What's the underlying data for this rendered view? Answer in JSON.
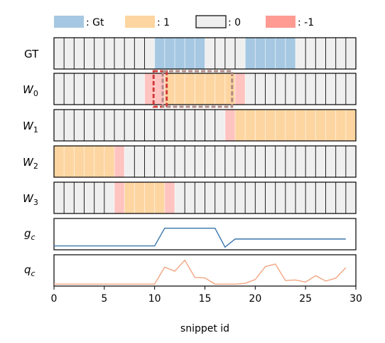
{
  "legend": [
    {
      "label": ": Gt",
      "color": "#a6c8e2"
    },
    {
      "label": ": 1",
      "color": "#fdd5a0"
    },
    {
      "label": ": 0",
      "color": "#efefef"
    },
    {
      "label": ": -1",
      "color": "#ff9b92"
    }
  ],
  "rows": [
    {
      "id": "gt",
      "label": "GT",
      "cells": [
        0,
        0,
        0,
        0,
        0,
        0,
        0,
        0,
        0,
        0,
        2,
        2,
        2,
        2,
        2,
        0,
        0,
        0,
        0,
        2,
        2,
        2,
        2,
        2,
        0,
        0,
        0,
        0,
        0,
        0
      ]
    },
    {
      "id": "w0",
      "label": "W",
      "sub": "0",
      "cells": [
        0,
        0,
        0,
        0,
        0,
        0,
        0,
        0,
        0,
        -1,
        -1,
        1,
        1,
        1,
        1,
        1,
        1,
        1,
        -1,
        0,
        0,
        0,
        0,
        0,
        0,
        0,
        0,
        0,
        0,
        0
      ]
    },
    {
      "id": "w1",
      "label": "W",
      "sub": "1",
      "cells": [
        0,
        0,
        0,
        0,
        0,
        0,
        0,
        0,
        0,
        0,
        0,
        0,
        0,
        0,
        0,
        0,
        0,
        -1,
        1,
        1,
        1,
        1,
        1,
        1,
        1,
        1,
        1,
        1,
        1,
        1
      ]
    },
    {
      "id": "w2",
      "label": "W",
      "sub": "2",
      "cells": [
        1,
        1,
        1,
        1,
        1,
        1,
        -1,
        0,
        0,
        0,
        0,
        0,
        0,
        0,
        0,
        0,
        0,
        0,
        0,
        0,
        0,
        0,
        0,
        0,
        0,
        0,
        0,
        0,
        0,
        0
      ]
    },
    {
      "id": "w3",
      "label": "W",
      "sub": "3",
      "cells": [
        0,
        0,
        0,
        0,
        0,
        0,
        -1,
        1,
        1,
        1,
        1,
        -1,
        0,
        0,
        0,
        0,
        0,
        0,
        0,
        0,
        0,
        0,
        0,
        0,
        0,
        0,
        0,
        0,
        0,
        0
      ]
    }
  ],
  "highlight_boxes": [
    {
      "row": "w0",
      "from": 9.9,
      "to": 11.2,
      "color": "#d23a3a"
    },
    {
      "row": "w0",
      "from": 10.8,
      "to": 17.7,
      "color": "#b08a84"
    }
  ],
  "chart_data": [
    {
      "type": "line",
      "ylabel": "g",
      "ylabel_sub": "c",
      "color": "#3a75ad",
      "x": [
        0,
        10,
        11,
        16,
        17,
        18,
        29
      ],
      "y": [
        0.0,
        0.0,
        0.72,
        0.72,
        -0.05,
        0.28,
        0.28
      ]
    },
    {
      "type": "line",
      "ylabel": "q",
      "ylabel_sub": "c",
      "color": "#f2a582",
      "x": [
        0,
        1,
        2,
        3,
        4,
        5,
        6,
        7,
        8,
        9,
        10,
        11,
        12,
        13,
        14,
        15,
        16,
        17,
        18,
        19,
        20,
        21,
        22,
        23,
        24,
        25,
        26,
        27,
        28,
        29
      ],
      "y": [
        0.02,
        0.02,
        0.02,
        0.02,
        0.02,
        0.02,
        0.02,
        0.02,
        0.02,
        0.02,
        0.02,
        0.68,
        0.52,
        0.95,
        0.28,
        0.26,
        0.02,
        0.02,
        0.02,
        0.05,
        0.2,
        0.7,
        0.8,
        0.16,
        0.18,
        0.1,
        0.35,
        0.14,
        0.25,
        0.66
      ]
    }
  ],
  "xaxis": {
    "label": "snippet id",
    "min": 0,
    "max": 30,
    "ticks": [
      0,
      5,
      10,
      15,
      20,
      25,
      30
    ]
  }
}
